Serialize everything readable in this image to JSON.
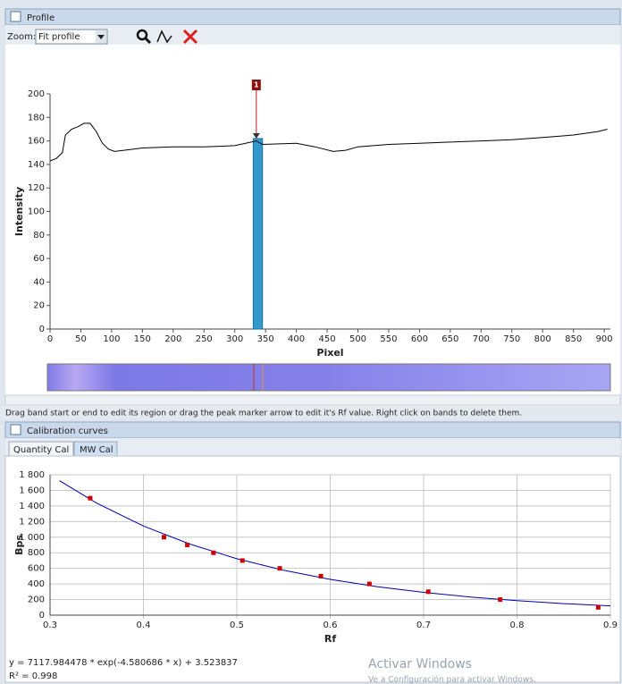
{
  "profile_panel": {
    "title": "Profile",
    "zoom_label": "Zoom:",
    "zoom_value": "Fit profile",
    "status": "Drag band start or end to edit its region or drag the peak marker arrow to edit it's Rf value. Right click on bands to delete them."
  },
  "calibration_panel": {
    "title": "Calibration curves",
    "tabs": [
      "Quantity Cal",
      "MW Cal"
    ],
    "equation": "y = 7117.984478 * exp(-4.580686 * x) + 3.523837",
    "r_squared": "R² = 0.998"
  },
  "watermark": {
    "title": "Activar Windows",
    "subtitle": "Ve a Configuración para activar Windows."
  },
  "chart_data": [
    {
      "type": "line",
      "xlabel": "Pixel",
      "ylabel": "Intensity",
      "color": "#000000",
      "grid": false,
      "x": [
        0,
        10,
        20,
        25,
        35,
        45,
        55,
        65,
        75,
        85,
        95,
        105,
        120,
        150,
        200,
        250,
        300,
        335,
        345,
        400,
        430,
        460,
        480,
        500,
        550,
        600,
        650,
        700,
        750,
        800,
        850,
        890,
        905
      ],
      "values": [
        143,
        145,
        150,
        165,
        170,
        172,
        175,
        175,
        168,
        158,
        153,
        151,
        152,
        154,
        155,
        155,
        156,
        160,
        157,
        158,
        155,
        151,
        152,
        155,
        157,
        158,
        159,
        160,
        161,
        163,
        165,
        168,
        170
      ],
      "xlim": [
        0,
        910
      ],
      "ylim": [
        0,
        200
      ],
      "xticks": [
        0,
        50,
        100,
        150,
        200,
        250,
        300,
        350,
        400,
        450,
        500,
        550,
        600,
        650,
        700,
        750,
        800,
        850,
        900
      ],
      "yticks": [
        0,
        20,
        40,
        60,
        80,
        100,
        120,
        140,
        160,
        180,
        200
      ],
      "bands": [
        {
          "start": 330,
          "end": 345,
          "peak": 162,
          "color": "#3399cc"
        }
      ],
      "peak_marker": {
        "label": "1",
        "x": 335,
        "color": "#8b1010"
      }
    },
    {
      "type": "scatter",
      "xlabel": "Rf",
      "ylabel": "Bps",
      "color": "#cc0000",
      "grid": true,
      "x": [
        0.343,
        0.422,
        0.447,
        0.475,
        0.506,
        0.546,
        0.59,
        0.642,
        0.705,
        0.782,
        0.887
      ],
      "values": [
        1500,
        1000,
        900,
        800,
        700,
        600,
        500,
        400,
        300,
        200,
        100
      ],
      "fit": {
        "color": "#0000aa",
        "x": [
          0.31,
          0.35,
          0.4,
          0.45,
          0.5,
          0.55,
          0.6,
          0.65,
          0.7,
          0.75,
          0.8,
          0.85,
          0.9
        ],
        "values": [
          1724,
          1436,
          1143,
          910,
          724,
          576,
          459,
          366,
          292,
          233,
          186,
          148,
          119
        ]
      },
      "xlim": [
        0.3,
        0.9
      ],
      "ylim": [
        0,
        1800
      ],
      "xticks": [
        0.3,
        0.4,
        0.5,
        0.6,
        0.7,
        0.8,
        0.9
      ],
      "yticks": [
        0,
        200,
        400,
        600,
        800,
        {
          "value": 1000,
          "label": "1 000"
        },
        {
          "value": 1200,
          "label": "1 200"
        },
        {
          "value": 1400,
          "label": "1 400"
        },
        {
          "value": 1600,
          "label": "1 600"
        },
        {
          "value": 1800,
          "label": "1 800"
        }
      ]
    }
  ]
}
